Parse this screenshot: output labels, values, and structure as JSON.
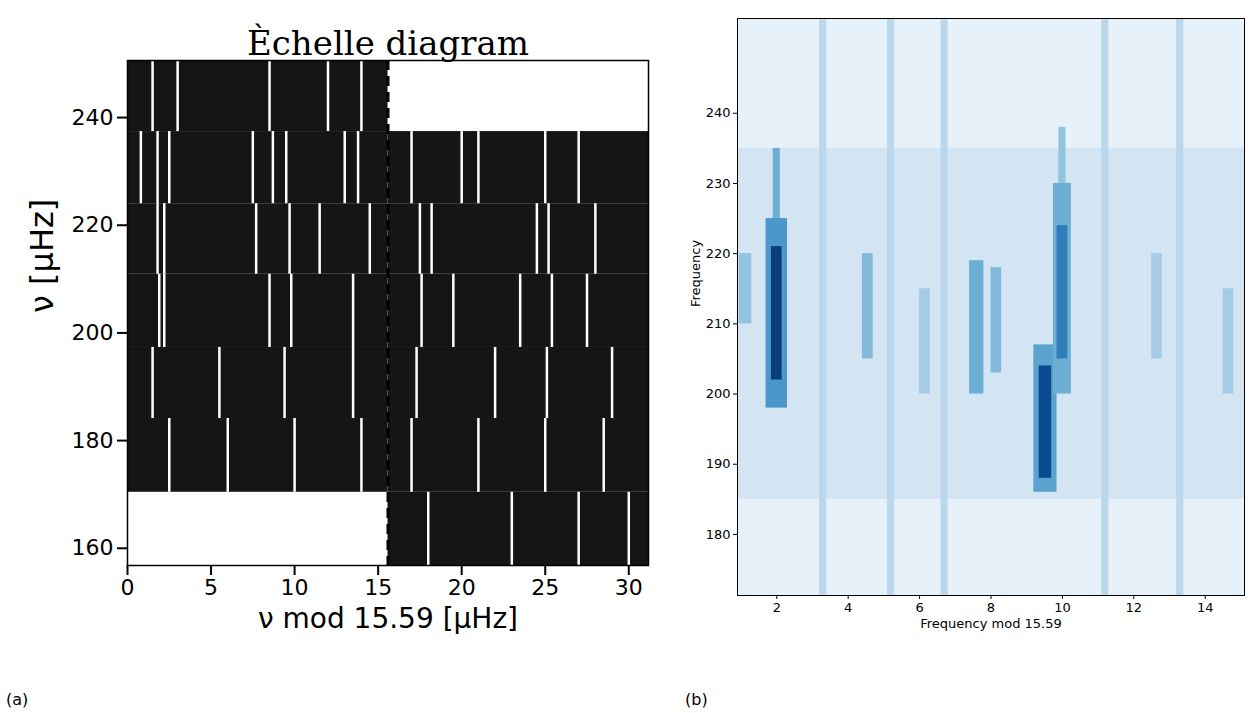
{
  "chart_data": [
    {
      "type": "echelle",
      "title": "Èchelle diagram",
      "x_label": "ν mod 15.59 [μHz]",
      "y_label": "ν [μHz]",
      "panel_label": "(a)",
      "xlim": [
        0,
        31.18
      ],
      "ylim": [
        156.8,
        250.6
      ],
      "xticks": [
        0,
        5,
        10,
        15,
        20,
        25,
        30
      ],
      "yticks": [
        160,
        180,
        200,
        220,
        240
      ],
      "divider": 15.59,
      "rows": [
        {
          "x0": 0,
          "x1": 15.59,
          "y0": 237.4,
          "y1": 250.6,
          "peaks": [
            1.5,
            3.0,
            8.5,
            12.0,
            14.0
          ]
        },
        {
          "x0": 0,
          "x1": 15.59,
          "y0": 224.0,
          "y1": 237.4,
          "peaks": [
            0.8,
            1.8,
            2.5,
            7.5,
            8.7,
            9.5,
            13.0,
            13.8
          ]
        },
        {
          "x0": 0,
          "x1": 15.59,
          "y0": 210.9,
          "y1": 224.0,
          "peaks": [
            1.8,
            2.2,
            7.7,
            9.7,
            11.5,
            14.5
          ]
        },
        {
          "x0": 0,
          "x1": 15.59,
          "y0": 197.3,
          "y1": 210.9,
          "peaks": [
            1.9,
            2.2,
            8.5,
            9.8,
            13.5
          ]
        },
        {
          "x0": 0,
          "x1": 15.59,
          "y0": 184.1,
          "y1": 197.3,
          "peaks": [
            1.5,
            5.5,
            9.4,
            13.5
          ]
        },
        {
          "x0": 0,
          "x1": 15.59,
          "y0": 170.4,
          "y1": 184.1,
          "peaks": [
            2.5,
            6.0,
            10.0,
            14.0
          ]
        },
        {
          "x0": 15.59,
          "x1": 31.18,
          "y0": 224.0,
          "y1": 237.4,
          "peaks": [
            17.0,
            20.0,
            21.0,
            25.0,
            27.0
          ]
        },
        {
          "x0": 15.59,
          "x1": 31.18,
          "y0": 210.9,
          "y1": 224.0,
          "peaks": [
            17.5,
            18.2,
            24.5,
            25.2,
            28.0
          ]
        },
        {
          "x0": 15.59,
          "x1": 31.18,
          "y0": 197.3,
          "y1": 210.9,
          "peaks": [
            17.6,
            19.5,
            23.5,
            25.4,
            27.5
          ]
        },
        {
          "x0": 15.59,
          "x1": 31.18,
          "y0": 184.1,
          "y1": 197.3,
          "peaks": [
            17.3,
            22.0,
            25.1,
            29.0
          ]
        },
        {
          "x0": 15.59,
          "x1": 31.18,
          "y0": 170.4,
          "y1": 184.1,
          "peaks": [
            17.0,
            21.0,
            25.0,
            28.5
          ]
        },
        {
          "x0": 15.59,
          "x1": 31.18,
          "y0": 156.8,
          "y1": 170.4,
          "peaks": [
            18.0,
            23.0,
            27.0,
            30.0
          ]
        }
      ]
    },
    {
      "type": "heatmap",
      "x_label": "Frequency mod 15.59",
      "y_label": "Frequency",
      "panel_label": "(b)",
      "xlim": [
        0.9,
        15.1
      ],
      "ylim": [
        171.3,
        253.5
      ],
      "xticks": [
        2,
        4,
        6,
        8,
        10,
        12,
        14
      ],
      "yticks": [
        180,
        190,
        200,
        210,
        220,
        230,
        240
      ],
      "zlim": [
        0,
        1
      ],
      "cells": [
        [
          0.9,
          15.1,
          171.3,
          253.5,
          0.08
        ],
        [
          0.9,
          15.1,
          185,
          235,
          0.18
        ],
        [
          3.2,
          3.4,
          171.3,
          253.5,
          0.28
        ],
        [
          5.1,
          5.3,
          171.3,
          253.5,
          0.28
        ],
        [
          6.6,
          6.8,
          171.3,
          253.5,
          0.28
        ],
        [
          11.1,
          11.3,
          171.3,
          253.5,
          0.28
        ],
        [
          13.2,
          13.4,
          171.3,
          253.5,
          0.28
        ],
        [
          1.7,
          2.3,
          198,
          225,
          0.6
        ],
        [
          1.85,
          2.15,
          202,
          221,
          0.95
        ],
        [
          1.9,
          2.1,
          225,
          235,
          0.5
        ],
        [
          9.2,
          9.85,
          186,
          207,
          0.55
        ],
        [
          9.35,
          9.7,
          188,
          204,
          0.9
        ],
        [
          9.75,
          10.25,
          200,
          230,
          0.5
        ],
        [
          9.85,
          10.15,
          205,
          224,
          0.7
        ],
        [
          9.9,
          10.1,
          230,
          238,
          0.4
        ],
        [
          7.4,
          7.8,
          200,
          219,
          0.5
        ],
        [
          8.0,
          8.3,
          203,
          218,
          0.45
        ],
        [
          4.4,
          4.7,
          205,
          220,
          0.45
        ],
        [
          6.0,
          6.3,
          200,
          215,
          0.35
        ],
        [
          12.5,
          12.8,
          205,
          220,
          0.35
        ],
        [
          0.95,
          1.3,
          210,
          220,
          0.4
        ],
        [
          14.5,
          14.8,
          200,
          215,
          0.35
        ]
      ]
    }
  ]
}
